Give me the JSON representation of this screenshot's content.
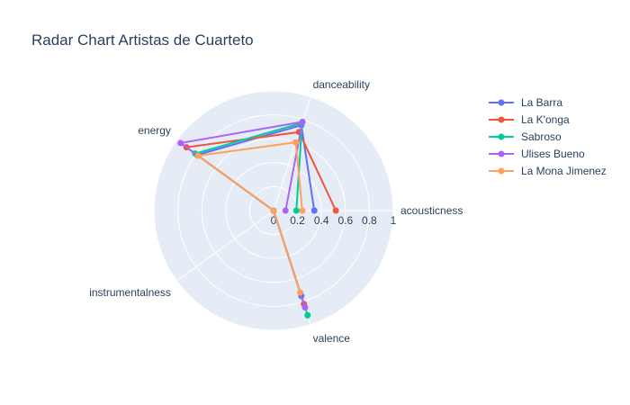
{
  "chart_data": {
    "type": "radar",
    "title": "Radar Chart Artistas de Cuarteto",
    "axes": [
      "acousticness",
      "danceability",
      "energy",
      "instrumentalness",
      "valence"
    ],
    "radial_range": [
      0,
      1
    ],
    "radial_ticks": [
      "0",
      "0.2",
      "0.4",
      "0.6",
      "0.8",
      "1"
    ],
    "radial_tick_values": [
      0,
      0.2,
      0.4,
      0.6,
      0.8,
      1
    ],
    "grid": true,
    "legend_position": "top-right",
    "series": [
      {
        "name": "La Barra",
        "color": "#636efa",
        "values": [
          0.34,
          0.75,
          0.79,
          0.0,
          0.75
        ]
      },
      {
        "name": "La K'onga",
        "color": "#ef553b",
        "values": [
          0.52,
          0.69,
          0.9,
          0.0,
          0.82
        ]
      },
      {
        "name": "Sabroso",
        "color": "#00cc96",
        "values": [
          0.19,
          0.77,
          0.81,
          0.0,
          0.92
        ]
      },
      {
        "name": "Ulises Bueno",
        "color": "#ab63fa",
        "values": [
          0.1,
          0.78,
          0.96,
          0.0,
          0.85
        ]
      },
      {
        "name": "La Mona Jimenez",
        "color": "#ffa15a",
        "values": [
          0.24,
          0.6,
          0.78,
          0.0,
          0.72
        ]
      }
    ]
  }
}
